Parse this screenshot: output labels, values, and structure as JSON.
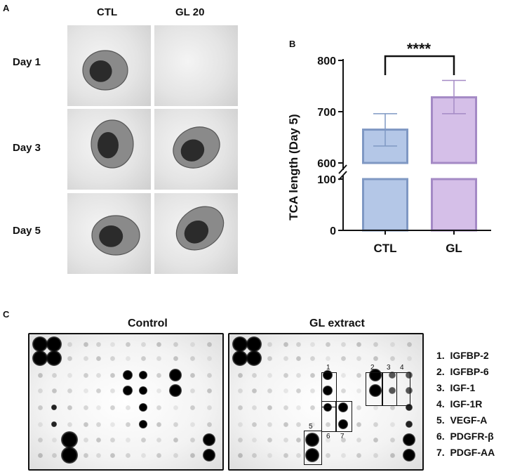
{
  "panel_a": {
    "label": "A",
    "columns": [
      "CTL",
      "GL 20"
    ],
    "rows": [
      "Day 1",
      "Day 3",
      "Day 5"
    ]
  },
  "panel_b": {
    "label": "B"
  },
  "panel_c": {
    "label": "C",
    "blot_titles": [
      "Control",
      "GL extract"
    ],
    "box_numbers": [
      "1",
      "2",
      "3",
      "4",
      "5",
      "6",
      "7"
    ],
    "legend": [
      {
        "num": "1.",
        "name": "IGFBP-2"
      },
      {
        "num": "2.",
        "name": "IGFBP-6"
      },
      {
        "num": "3.",
        "name": "IGF-1"
      },
      {
        "num": "4.",
        "name": "IGF-1R"
      },
      {
        "num": "5.",
        "name": "VEGF-A"
      },
      {
        "num": "6.",
        "name": "PDGFR-β"
      },
      {
        "num": "7.",
        "name": "PDGF-AA"
      }
    ]
  },
  "chart_data": {
    "type": "bar",
    "categories": [
      "CTL",
      "GL"
    ],
    "values": [
      665,
      728
    ],
    "error": [
      [
        633,
        696
      ],
      [
        696,
        761
      ]
    ],
    "ylabel": "TCA length (Day 5)",
    "yticks": [
      0,
      100,
      600,
      700,
      800
    ],
    "axis_break": [
      100,
      600
    ],
    "significance": "****",
    "colors": [
      "#b4c7e7",
      "#d5bfe8"
    ],
    "edge_colors": [
      "#7f98c3",
      "#a48ac5"
    ]
  }
}
